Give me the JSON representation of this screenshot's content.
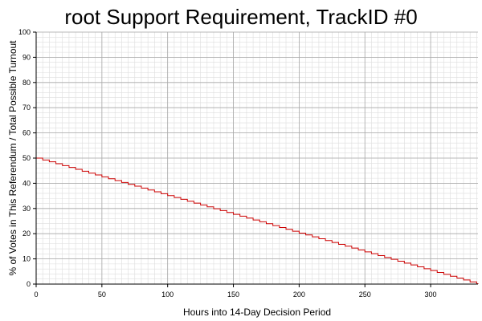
{
  "chart_data": {
    "type": "line",
    "step": true,
    "title": "root Support Requirement, TrackID #0",
    "xlabel": "Hours into 14-Day Decision Period",
    "ylabel": "% of Votes in This Referendum / Total Possible Turnout",
    "xlim": [
      0,
      336
    ],
    "ylim": [
      0,
      100
    ],
    "x_ticks": [
      0,
      50,
      100,
      150,
      200,
      250,
      300
    ],
    "y_ticks": [
      0,
      10,
      20,
      30,
      40,
      50,
      60,
      70,
      80,
      90,
      100
    ],
    "grid": true,
    "legend": "none",
    "series": [
      {
        "color": "#cc0000",
        "x": [
          0,
          336
        ],
        "y": [
          50,
          0
        ]
      }
    ]
  }
}
